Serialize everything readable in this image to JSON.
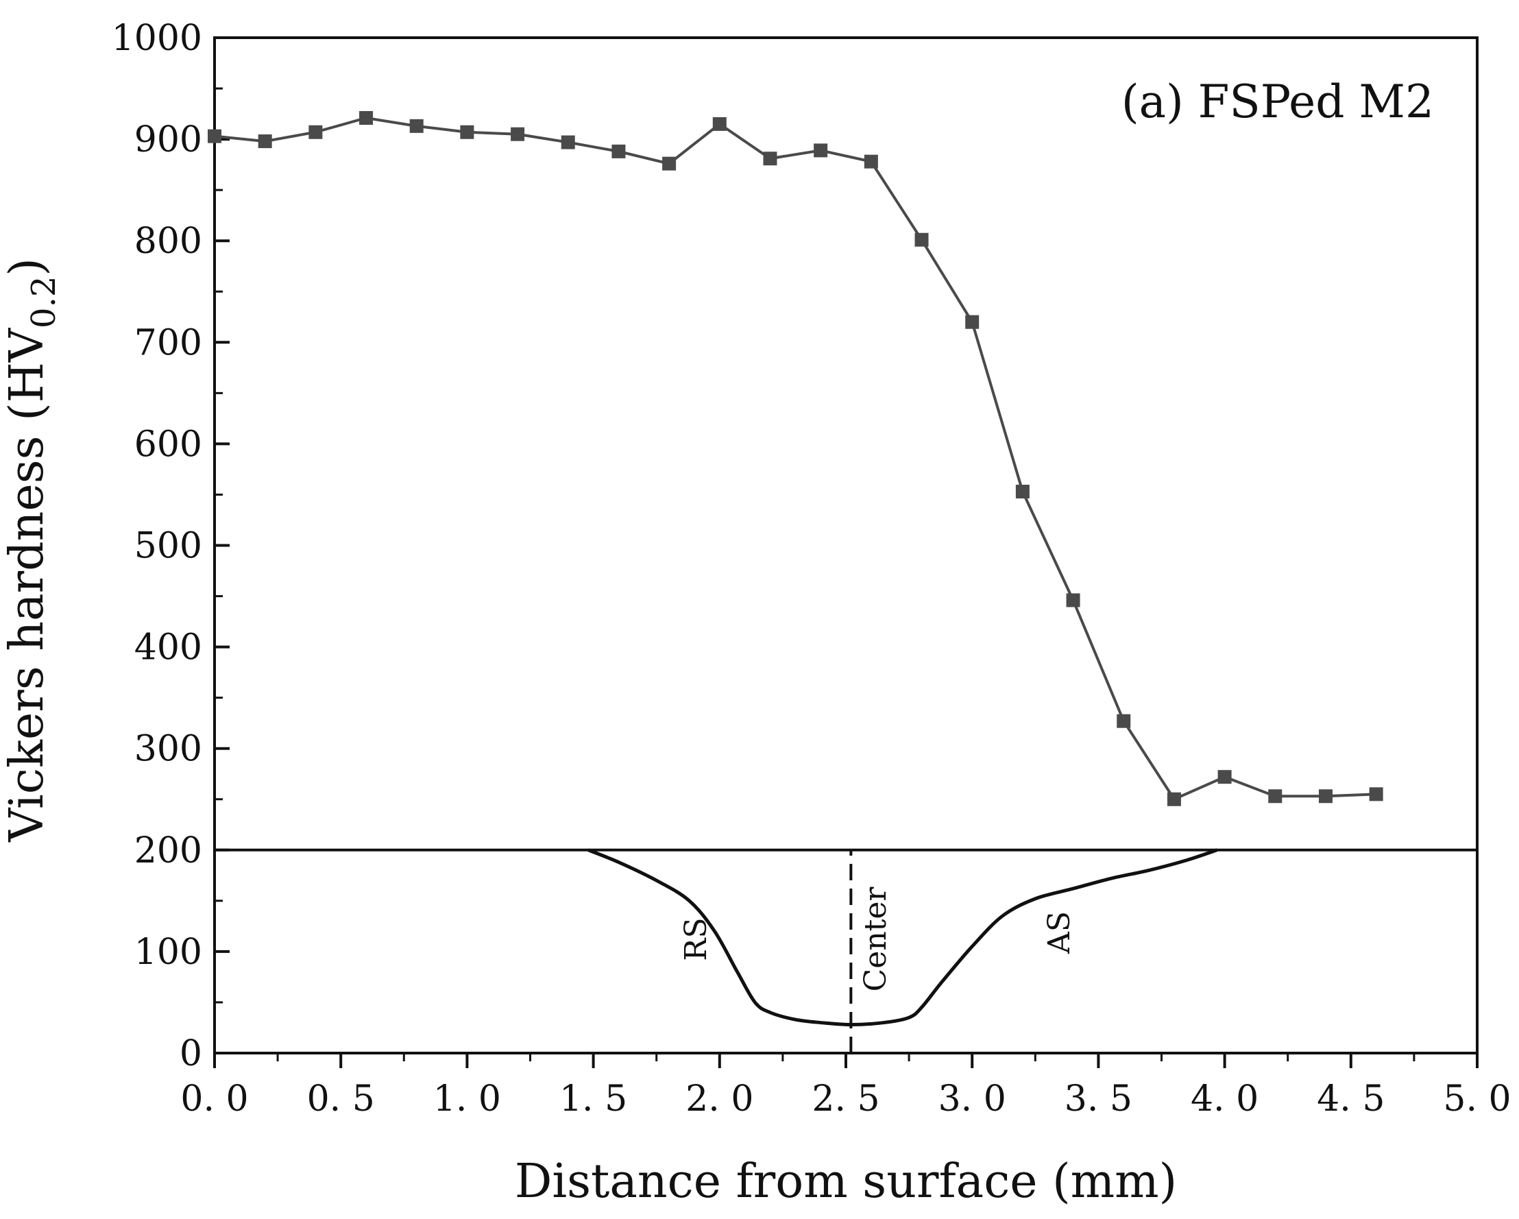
{
  "chart_data": {
    "type": "line",
    "title": "(a) FSPed M2",
    "xlabel": "Distance from surface (mm)",
    "ylabel": {
      "main": "Vickers hardness (HV",
      "subscript": "0.2",
      "close": ")"
    },
    "xlim": [
      0,
      5
    ],
    "ylim": [
      0,
      1000
    ],
    "x_ticks": [
      "0. 0",
      "0. 5",
      "1. 0",
      "1. 5",
      "2. 0",
      "2. 5",
      "3. 0",
      "3. 5",
      "4. 0",
      "4. 5",
      "5. 0"
    ],
    "x_tick_values": [
      0,
      0.5,
      1.0,
      1.5,
      2.0,
      2.5,
      3.0,
      3.5,
      4.0,
      4.5,
      5.0
    ],
    "y_ticks": [
      "0",
      "100",
      "200",
      "300",
      "400",
      "500",
      "600",
      "700",
      "800",
      "900",
      "1000"
    ],
    "y_tick_values": [
      0,
      100,
      200,
      300,
      400,
      500,
      600,
      700,
      800,
      900,
      1000
    ],
    "series": [
      {
        "name": "FSPed M2",
        "color": "#4a4a4a",
        "marker": "square",
        "x": [
          0.0,
          0.2,
          0.4,
          0.6,
          0.8,
          1.0,
          1.2,
          1.4,
          1.6,
          1.8,
          2.0,
          2.2,
          2.4,
          2.6,
          2.8,
          3.0,
          3.2,
          3.4,
          3.6,
          3.8,
          4.0,
          4.2,
          4.4,
          4.6
        ],
        "y": [
          903,
          898,
          907,
          921,
          913,
          907,
          905,
          897,
          888,
          876,
          915,
          881,
          889,
          878,
          801,
          720,
          553,
          446,
          327,
          250,
          272,
          253,
          253,
          255
        ]
      }
    ],
    "profile_outline": {
      "baseline": 200,
      "x": [
        1.48,
        1.6,
        1.75,
        1.88,
        1.98,
        2.07,
        2.14,
        2.2,
        2.3,
        2.4,
        2.52,
        2.65,
        2.75,
        2.8,
        2.88,
        3.0,
        3.12,
        3.25,
        3.4,
        3.55,
        3.7,
        3.85,
        3.97
      ],
      "y": [
        200,
        188,
        170,
        150,
        120,
        80,
        50,
        40,
        33,
        30,
        28,
        30,
        35,
        45,
        70,
        105,
        135,
        152,
        162,
        172,
        180,
        190,
        200
      ]
    },
    "center_line": {
      "x": 2.52,
      "y_from": 0,
      "y_to": 200
    },
    "annotations": {
      "rs": "RS",
      "center": "Center",
      "as": "AS"
    },
    "grid": false,
    "legend": "none"
  }
}
